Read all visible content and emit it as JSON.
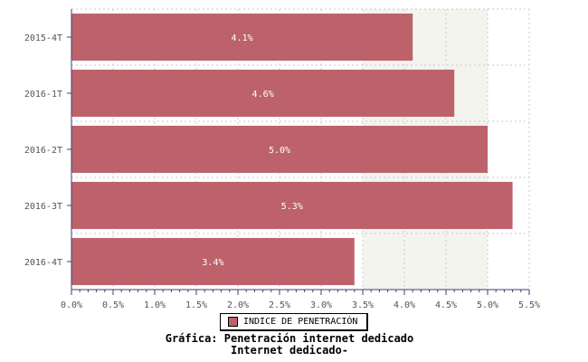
{
  "chart_data": {
    "type": "bar",
    "orientation": "horizontal",
    "categories": [
      "2015-4T",
      "2016-1T",
      "2016-2T",
      "2016-3T",
      "2016-4T"
    ],
    "series": [
      {
        "name": "INDICE DE PENETRACIÓN",
        "values": [
          4.1,
          4.6,
          5.0,
          5.3,
          3.4
        ],
        "color": "#bd626b"
      }
    ],
    "data_labels": [
      "4.1%",
      "4.6%",
      "5.0%",
      "5.3%",
      "3.4%"
    ],
    "xlim": [
      0,
      5.5
    ],
    "x_ticks": [
      0.0,
      0.5,
      1.0,
      1.5,
      2.0,
      2.5,
      3.0,
      3.5,
      4.0,
      4.5,
      5.0,
      5.5
    ],
    "x_tick_labels": [
      "0.0%",
      "0.5%",
      "1.0%",
      "1.5%",
      "2.0%",
      "2.5%",
      "3.0%",
      "3.5%",
      "4.0%",
      "4.5%",
      "5.0%",
      "5.5%"
    ],
    "shaded_band": [
      3.5,
      5.0
    ],
    "grid": true,
    "legend_position": "bottom"
  },
  "legend": {
    "label": "INDICE DE PENETRACIÓN"
  },
  "caption": {
    "line1": "Gráfica: Penetración internet dedicado",
    "line2": "Internet dedicado-"
  },
  "colors": {
    "bar": "#bd626b",
    "band": "#f4f4ef",
    "grid": "#c8c8d0",
    "axis": "#3d3d7a"
  }
}
